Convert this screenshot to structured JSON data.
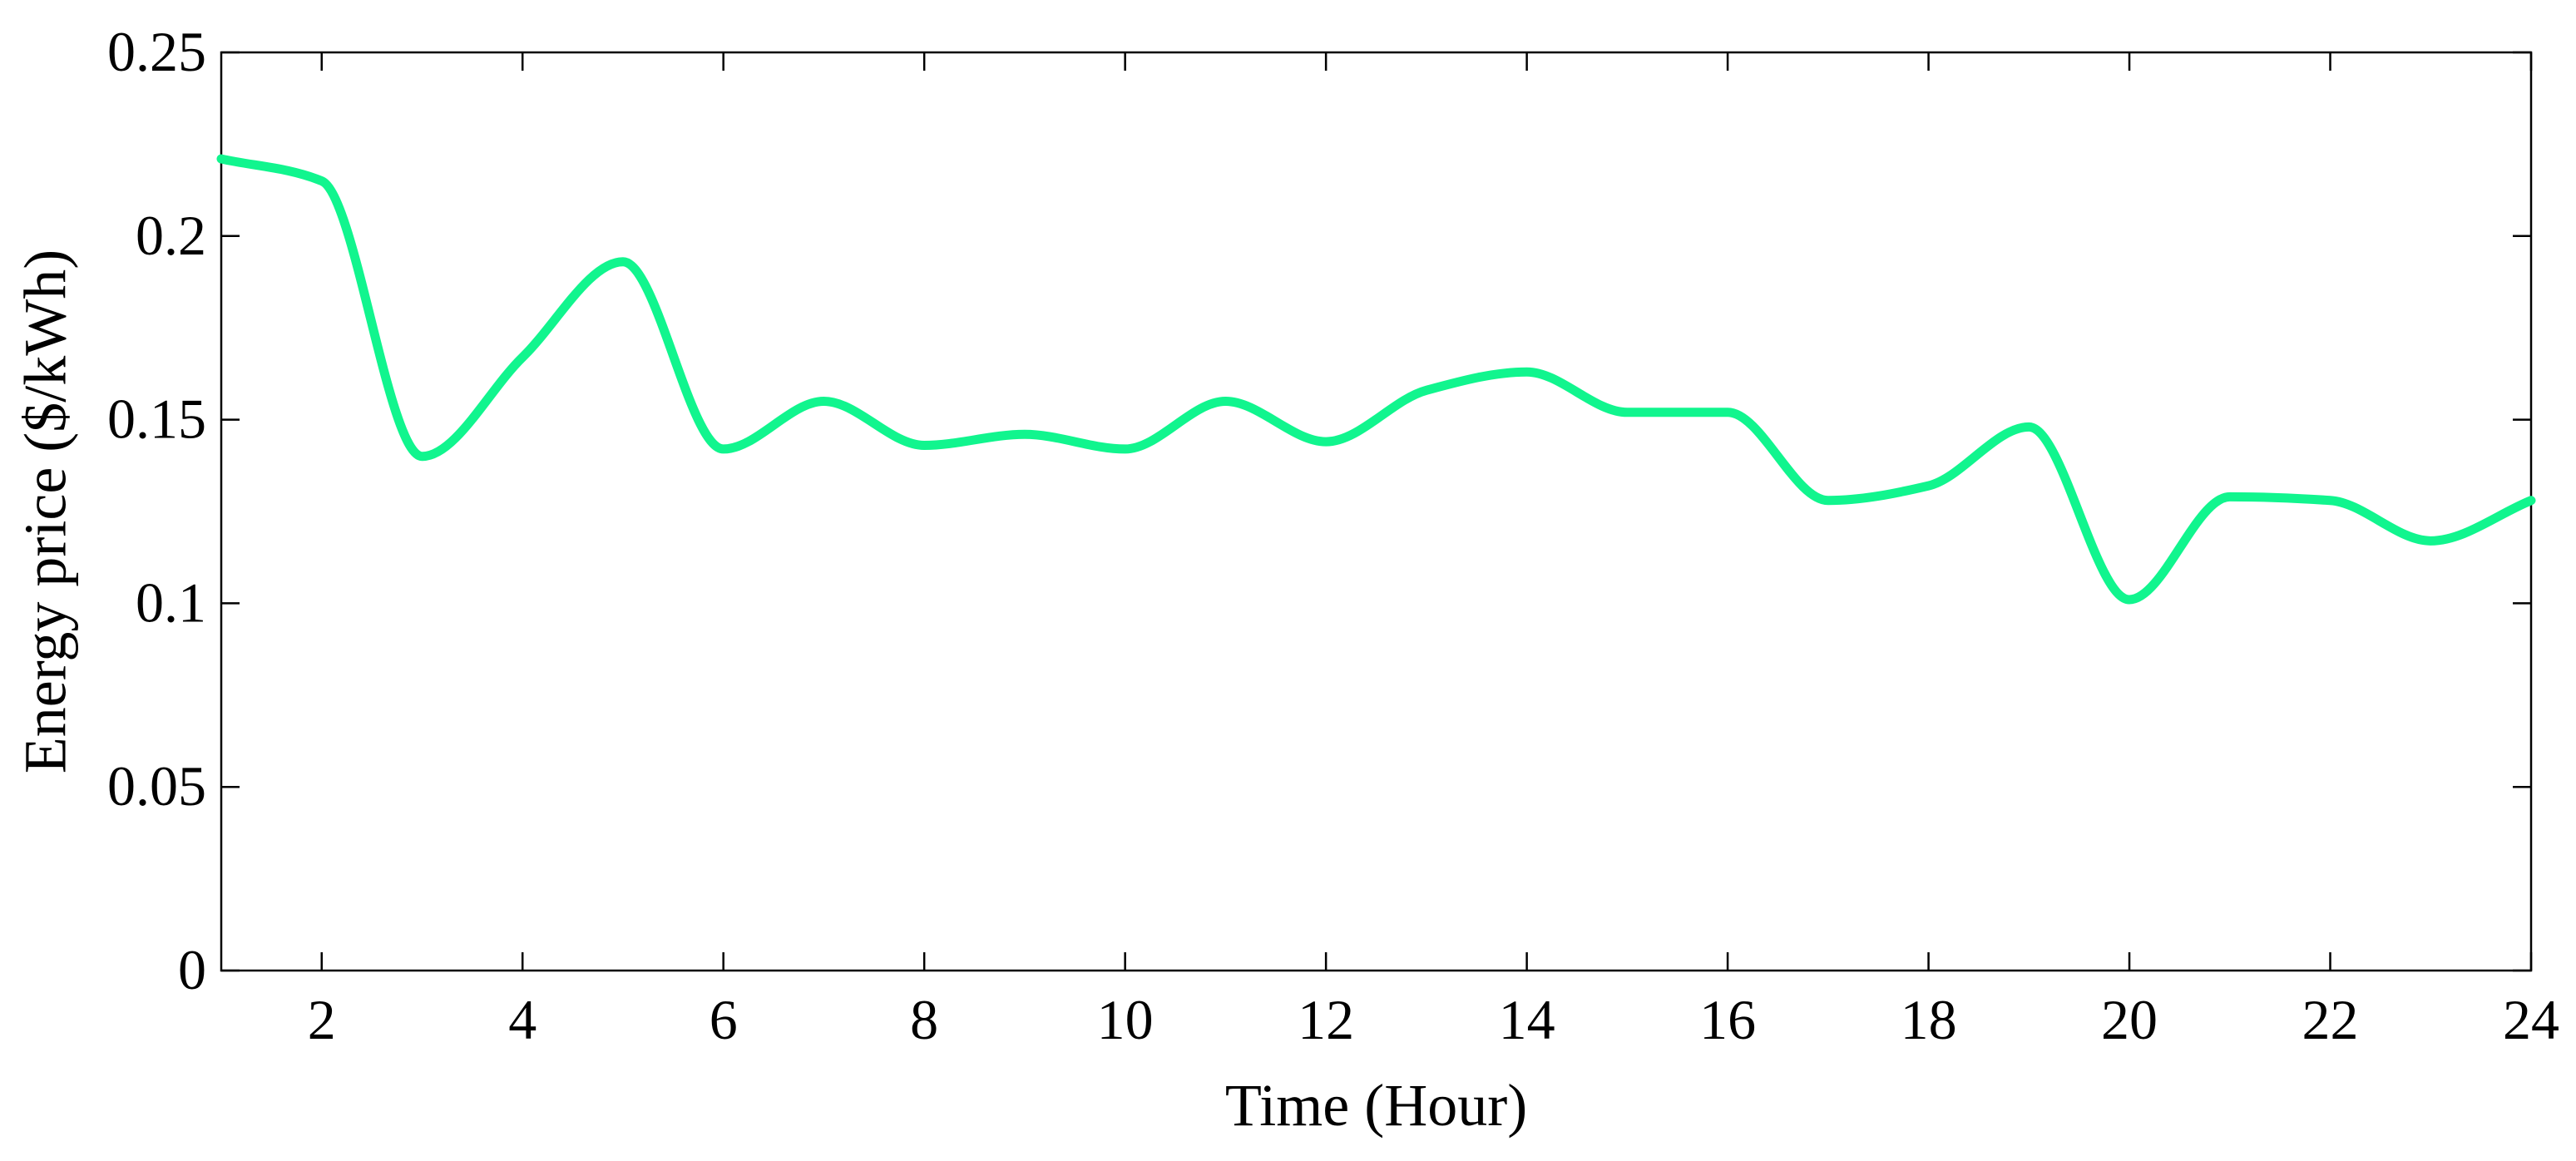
{
  "chart_data": {
    "type": "line",
    "title": "",
    "xlabel": "Time (Hour)",
    "ylabel": "Energy price ($/kWh)",
    "xlim": [
      1,
      24
    ],
    "ylim": [
      0,
      0.25
    ],
    "x_ticks": [
      2,
      4,
      6,
      8,
      10,
      12,
      14,
      16,
      18,
      20,
      22,
      24
    ],
    "x_tick_labels": [
      "2",
      "4",
      "6",
      "8",
      "10",
      "12",
      "14",
      "16",
      "18",
      "20",
      "22",
      "24"
    ],
    "y_ticks": [
      0,
      0.05,
      0.1,
      0.15,
      0.2,
      0.25
    ],
    "y_tick_labels": [
      "0",
      "0.05",
      "0.1",
      "0.15",
      "0.2",
      "0.25"
    ],
    "grid": false,
    "series": [
      {
        "color": "#11f58e",
        "x": [
          1,
          2,
          3,
          4,
          5,
          6,
          7,
          8,
          9,
          10,
          11,
          12,
          13,
          14,
          15,
          16,
          17,
          18,
          19,
          20,
          21,
          22,
          23,
          24
        ],
        "y": [
          0.221,
          0.215,
          0.14,
          0.167,
          0.193,
          0.142,
          0.155,
          0.143,
          0.146,
          0.142,
          0.155,
          0.144,
          0.158,
          0.163,
          0.152,
          0.152,
          0.128,
          0.132,
          0.148,
          0.101,
          0.129,
          0.128,
          0.117,
          0.128
        ]
      }
    ]
  }
}
